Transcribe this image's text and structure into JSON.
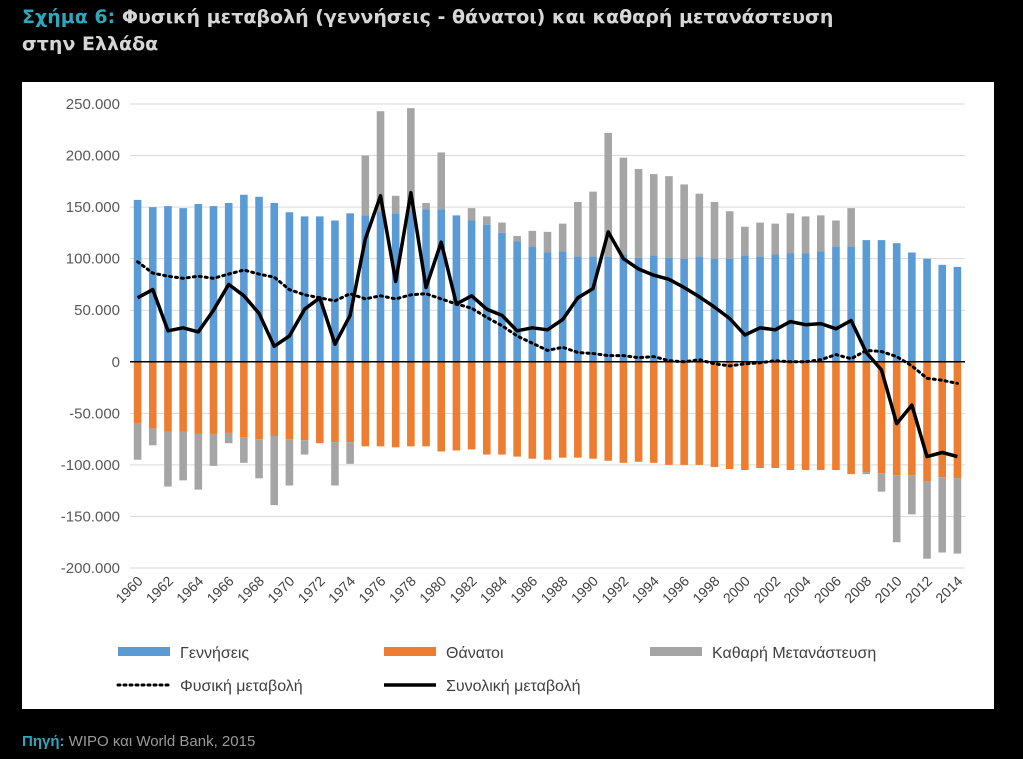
{
  "header": {
    "figure_label": "Σχήμα 6:",
    "title_line1": "Φυσική μεταβολή (γεννήσεις - θάνατοι) και καθαρή μετανάστευση",
    "title_line2": "στην Ελλάδα"
  },
  "footer": {
    "source_label": "Πηγή:",
    "source_text": "WIPO και World Bank, 2015"
  },
  "colors": {
    "births": "#5b9bd5",
    "deaths": "#ed7d31",
    "net_migration": "#a5a5a5",
    "natural_change": "#000000",
    "total_change": "#000000",
    "accent": "#2ea7bd"
  },
  "chart_data": {
    "type": "bar",
    "title": "",
    "xlabel": "",
    "ylabel": "",
    "ylim": [
      -200000,
      250000
    ],
    "y_ticks": [
      250000,
      200000,
      150000,
      100000,
      50000,
      0,
      -50000,
      -100000,
      -150000,
      -200000
    ],
    "y_tick_labels": [
      "250.000",
      "200.000",
      "150.000",
      "100.000",
      "50.000",
      "0",
      "-50.000",
      "-100.000",
      "-150.000",
      "-200.000"
    ],
    "grid": true,
    "legend_position": "bottom",
    "categories": [
      "1960",
      "1961",
      "1962",
      "1963",
      "1964",
      "1965",
      "1966",
      "1967",
      "1968",
      "1969",
      "1970",
      "1971",
      "1972",
      "1973",
      "1974",
      "1975",
      "1976",
      "1977",
      "1978",
      "1979",
      "1980",
      "1981",
      "1982",
      "1983",
      "1984",
      "1985",
      "1986",
      "1987",
      "1988",
      "1989",
      "1990",
      "1991",
      "1992",
      "1993",
      "1994",
      "1995",
      "1996",
      "1997",
      "1998",
      "1999",
      "2000",
      "2001",
      "2002",
      "2003",
      "2004",
      "2005",
      "2006",
      "2007",
      "2008",
      "2009",
      "2010",
      "2011",
      "2012",
      "2013",
      "2014"
    ],
    "x_tick_labels": [
      "1960",
      "1962",
      "1964",
      "1966",
      "1968",
      "1970",
      "1972",
      "1974",
      "1976",
      "1978",
      "1980",
      "1982",
      "1984",
      "1986",
      "1988",
      "1990",
      "1992",
      "1994",
      "1996",
      "1998",
      "2000",
      "2002",
      "2004",
      "2006",
      "2008",
      "2010",
      "2012",
      "2014"
    ],
    "series": [
      {
        "name": "Γεννήσεις",
        "kind": "bar",
        "stack": "pos",
        "values": [
          157000,
          150000,
          151000,
          149000,
          153000,
          151000,
          154000,
          162000,
          160000,
          154000,
          145000,
          141000,
          141000,
          137000,
          144000,
          142000,
          146000,
          144000,
          147000,
          148000,
          148000,
          142000,
          137000,
          133000,
          125000,
          117000,
          112000,
          106000,
          107000,
          102000,
          102000,
          102000,
          104000,
          101000,
          103000,
          101000,
          100000,
          102000,
          100000,
          100000,
          103000,
          102000,
          104000,
          105000,
          105000,
          107000,
          112000,
          112000,
          118000,
          118000,
          115000,
          106000,
          100000,
          94000,
          92000
        ]
      },
      {
        "name": "Θάνατοι",
        "kind": "bar",
        "stack": "neg",
        "values": [
          -60000,
          -65000,
          -68000,
          -68000,
          -70000,
          -70000,
          -69000,
          -73000,
          -75000,
          -72000,
          -75000,
          -76000,
          -79000,
          -78000,
          -78000,
          -82000,
          -82000,
          -83000,
          -82000,
          -82000,
          -87000,
          -86000,
          -85000,
          -90000,
          -90000,
          -92000,
          -94000,
          -95000,
          -93000,
          -93000,
          -94000,
          -96000,
          -98000,
          -97000,
          -98000,
          -100000,
          -100000,
          -100000,
          -102000,
          -104000,
          -105000,
          -103000,
          -103000,
          -105000,
          -105000,
          -105000,
          -105000,
          -109000,
          -107000,
          -108000,
          -110000,
          -110000,
          -116000,
          -112000,
          -113000
        ]
      },
      {
        "name": "Καθαρή Μετανάστευση",
        "kind": "bar",
        "stack": "auto",
        "values": [
          -35000,
          -16000,
          -53000,
          -47000,
          -54000,
          -31000,
          -10000,
          -25000,
          -38000,
          -67000,
          -45000,
          -14000,
          0,
          -42000,
          -21000,
          58000,
          97000,
          17000,
          99000,
          6000,
          55000,
          0,
          12000,
          8000,
          10000,
          5000,
          15000,
          20000,
          27000,
          53000,
          63000,
          120000,
          94000,
          86000,
          79000,
          79000,
          72000,
          61000,
          55000,
          46000,
          28000,
          33000,
          30000,
          39000,
          36000,
          35000,
          25000,
          37000,
          -2000,
          -18000,
          -65000,
          -38000,
          -75000,
          -73000,
          -73000
        ]
      },
      {
        "name": "Φυσική μεταβολή",
        "kind": "line",
        "style": "dotted",
        "values": [
          97000,
          86000,
          83000,
          81000,
          83000,
          81000,
          85000,
          89000,
          85000,
          82000,
          70000,
          65000,
          62000,
          59000,
          66000,
          61000,
          64000,
          61000,
          65000,
          66000,
          61000,
          56000,
          52000,
          43000,
          35000,
          25000,
          18000,
          11000,
          14000,
          9000,
          8000,
          6000,
          6000,
          4000,
          5000,
          1000,
          0,
          2000,
          -2000,
          -4000,
          -2000,
          -1000,
          1000,
          0,
          0,
          2000,
          7000,
          3000,
          11000,
          10000,
          5000,
          -4000,
          -16000,
          -18000,
          -21000
        ]
      },
      {
        "name": "Συνολική μεταβολή",
        "kind": "line",
        "style": "solid",
        "values": [
          62000,
          70000,
          30000,
          33000,
          29000,
          50000,
          75000,
          64000,
          47000,
          15000,
          25000,
          51000,
          62000,
          17000,
          45000,
          119000,
          161000,
          78000,
          164000,
          72000,
          116000,
          56000,
          64000,
          51000,
          45000,
          30000,
          33000,
          31000,
          41000,
          62000,
          71000,
          126000,
          100000,
          90000,
          84000,
          80000,
          72000,
          63000,
          53000,
          42000,
          26000,
          33000,
          31000,
          39000,
          36000,
          37000,
          32000,
          40000,
          9000,
          -8000,
          -60000,
          -42000,
          -92000,
          -88000,
          -92000
        ]
      }
    ]
  }
}
